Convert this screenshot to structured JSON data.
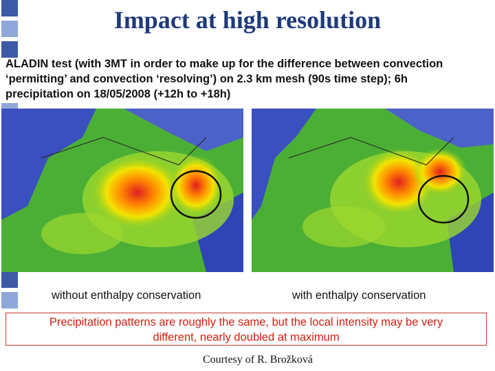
{
  "header": {
    "title": "Impact at high resolution"
  },
  "body": {
    "lines": [
      "ALADIN test (with 3MT in order to make up for the difference between convection",
      "‘permitting’ and convection ‘resolving’) on 2.3 km mesh (90s time step); 6h",
      "precipitation on 18/05/2008 (+12h to +18h)"
    ]
  },
  "captions": [
    "without enthalpy conservation",
    "with enthalpy conservation"
  ],
  "note": {
    "lines": [
      "Precipitation patterns are roughly the same, but the local intensity may be very",
      "different, nearly doubled at maximum"
    ]
  },
  "credit": "Courtesy of R. Brožková"
}
